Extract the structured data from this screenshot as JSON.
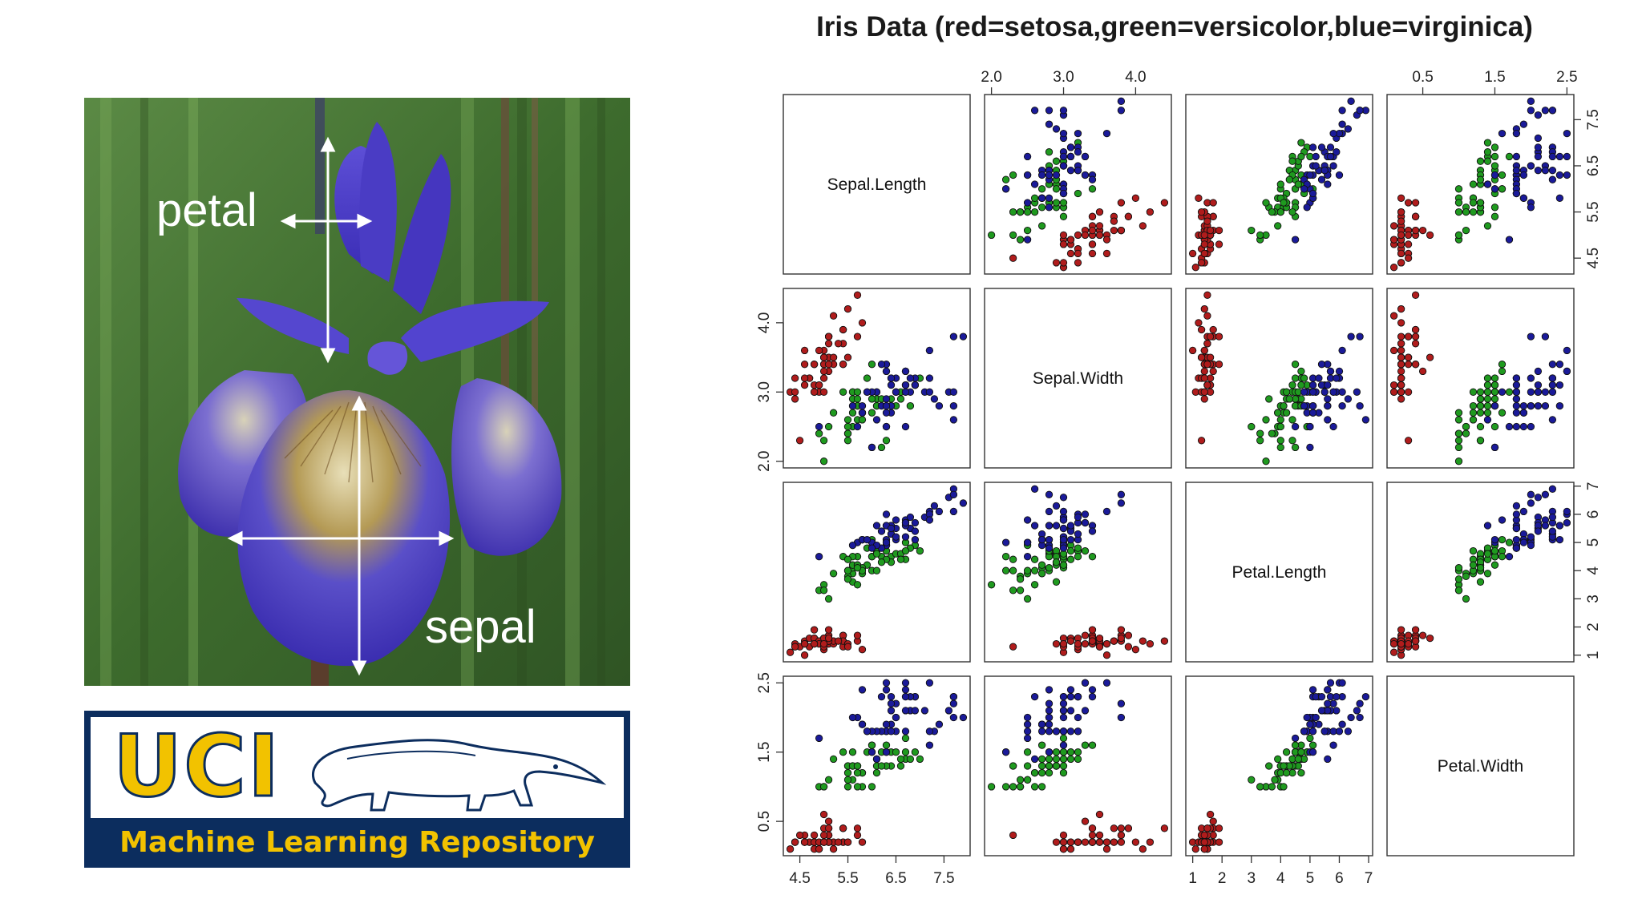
{
  "photo": {
    "petal_label": "petal",
    "sepal_label": "sepal",
    "colors": {
      "petal": "#4f3fc6",
      "sepal": "#3d2fb0",
      "background": "#3f6a2f"
    }
  },
  "logo": {
    "uci_text": "UCI",
    "subtitle": "Machine Learning Repository",
    "colors": {
      "navy": "#0c2d5e",
      "gold": "#f2c200"
    }
  },
  "chart_data": {
    "type": "scatter",
    "title": "Iris Data (red=setosa,green=versicolor,blue=virginica)",
    "variables": [
      "Sepal.Length",
      "Sepal.Width",
      "Petal.Length",
      "Petal.Width"
    ],
    "ranges": [
      [
        4.3,
        7.9
      ],
      [
        2.0,
        4.4
      ],
      [
        1.0,
        6.9
      ],
      [
        0.1,
        2.5
      ]
    ],
    "ticks": [
      [
        4.5,
        5.5,
        6.5,
        7.5
      ],
      [
        2.0,
        3.0,
        4.0
      ],
      [
        1,
        2,
        3,
        4,
        5,
        6,
        7
      ],
      [
        0.5,
        1.5,
        2.5
      ]
    ],
    "tick_labels": {
      "top": [
        [
          "2.0",
          "3.0",
          "4.0"
        ],
        [
          "0.5",
          "1.5",
          "2.5"
        ]
      ],
      "right": [
        [
          "4.5",
          "5.5",
          "6.5",
          "7.5"
        ],
        [
          "1",
          "2",
          "3",
          "4",
          "5",
          "6",
          "7"
        ]
      ],
      "left": [
        [
          "2.0",
          "3.0",
          "4.0"
        ],
        [
          "0.5",
          "1.5",
          "2.5"
        ]
      ],
      "bottom": [
        [
          "4.5",
          "5.5",
          "6.5",
          "7.5"
        ],
        [
          "1",
          "2",
          "3",
          "4",
          "5",
          "6",
          "7"
        ]
      ]
    },
    "legend": "in title",
    "grid": false,
    "series": [
      {
        "name": "setosa",
        "color": "#b01c1c",
        "points": [
          [
            5.1,
            3.5,
            1.4,
            0.2
          ],
          [
            4.9,
            3.0,
            1.4,
            0.2
          ],
          [
            4.7,
            3.2,
            1.3,
            0.2
          ],
          [
            4.6,
            3.1,
            1.5,
            0.2
          ],
          [
            5.0,
            3.6,
            1.4,
            0.2
          ],
          [
            5.4,
            3.9,
            1.7,
            0.4
          ],
          [
            4.6,
            3.4,
            1.4,
            0.3
          ],
          [
            5.0,
            3.4,
            1.5,
            0.2
          ],
          [
            4.4,
            2.9,
            1.4,
            0.2
          ],
          [
            4.9,
            3.1,
            1.5,
            0.1
          ],
          [
            5.4,
            3.7,
            1.5,
            0.2
          ],
          [
            4.8,
            3.4,
            1.6,
            0.2
          ],
          [
            4.8,
            3.0,
            1.4,
            0.1
          ],
          [
            4.3,
            3.0,
            1.1,
            0.1
          ],
          [
            5.8,
            4.0,
            1.2,
            0.2
          ],
          [
            5.7,
            4.4,
            1.5,
            0.4
          ],
          [
            5.4,
            3.9,
            1.3,
            0.4
          ],
          [
            5.1,
            3.5,
            1.4,
            0.3
          ],
          [
            5.7,
            3.8,
            1.7,
            0.3
          ],
          [
            5.1,
            3.8,
            1.5,
            0.3
          ],
          [
            5.4,
            3.4,
            1.7,
            0.2
          ],
          [
            5.1,
            3.7,
            1.5,
            0.4
          ],
          [
            4.6,
            3.6,
            1.0,
            0.2
          ],
          [
            5.1,
            3.3,
            1.7,
            0.5
          ],
          [
            4.8,
            3.4,
            1.9,
            0.2
          ],
          [
            5.0,
            3.0,
            1.6,
            0.2
          ],
          [
            5.0,
            3.4,
            1.6,
            0.4
          ],
          [
            5.2,
            3.5,
            1.5,
            0.2
          ],
          [
            5.2,
            3.4,
            1.4,
            0.2
          ],
          [
            4.7,
            3.2,
            1.6,
            0.2
          ],
          [
            4.8,
            3.1,
            1.6,
            0.2
          ],
          [
            5.4,
            3.4,
            1.5,
            0.4
          ],
          [
            5.2,
            4.1,
            1.5,
            0.1
          ],
          [
            5.5,
            4.2,
            1.4,
            0.2
          ],
          [
            4.9,
            3.1,
            1.5,
            0.2
          ],
          [
            5.0,
            3.2,
            1.2,
            0.2
          ],
          [
            5.5,
            3.5,
            1.3,
            0.2
          ],
          [
            4.9,
            3.6,
            1.4,
            0.1
          ],
          [
            4.4,
            3.0,
            1.3,
            0.2
          ],
          [
            5.1,
            3.4,
            1.5,
            0.2
          ],
          [
            5.0,
            3.5,
            1.3,
            0.3
          ],
          [
            4.5,
            2.3,
            1.3,
            0.3
          ],
          [
            4.4,
            3.2,
            1.3,
            0.2
          ],
          [
            5.0,
            3.5,
            1.6,
            0.6
          ],
          [
            5.1,
            3.8,
            1.9,
            0.4
          ],
          [
            4.8,
            3.0,
            1.4,
            0.3
          ],
          [
            5.1,
            3.8,
            1.6,
            0.2
          ],
          [
            4.6,
            3.2,
            1.4,
            0.2
          ],
          [
            5.3,
            3.7,
            1.5,
            0.2
          ],
          [
            5.0,
            3.3,
            1.4,
            0.2
          ]
        ]
      },
      {
        "name": "versicolor",
        "color": "#1f9a1f",
        "points": [
          [
            7.0,
            3.2,
            4.7,
            1.4
          ],
          [
            6.4,
            3.2,
            4.5,
            1.5
          ],
          [
            6.9,
            3.1,
            4.9,
            1.5
          ],
          [
            5.5,
            2.3,
            4.0,
            1.3
          ],
          [
            6.5,
            2.8,
            4.6,
            1.5
          ],
          [
            5.7,
            2.8,
            4.5,
            1.3
          ],
          [
            6.3,
            3.3,
            4.7,
            1.6
          ],
          [
            4.9,
            2.4,
            3.3,
            1.0
          ],
          [
            6.6,
            2.9,
            4.6,
            1.3
          ],
          [
            5.2,
            2.7,
            3.9,
            1.4
          ],
          [
            5.0,
            2.0,
            3.5,
            1.0
          ],
          [
            5.9,
            3.0,
            4.2,
            1.5
          ],
          [
            6.0,
            2.2,
            4.0,
            1.0
          ],
          [
            6.1,
            2.9,
            4.7,
            1.4
          ],
          [
            5.6,
            2.9,
            3.6,
            1.3
          ],
          [
            6.7,
            3.1,
            4.4,
            1.4
          ],
          [
            5.6,
            3.0,
            4.5,
            1.5
          ],
          [
            5.8,
            2.7,
            4.1,
            1.0
          ],
          [
            6.2,
            2.2,
            4.5,
            1.5
          ],
          [
            5.6,
            2.5,
            3.9,
            1.1
          ],
          [
            5.9,
            3.2,
            4.8,
            1.8
          ],
          [
            6.1,
            2.8,
            4.0,
            1.3
          ],
          [
            6.3,
            2.5,
            4.9,
            1.5
          ],
          [
            6.1,
            2.8,
            4.7,
            1.2
          ],
          [
            6.4,
            2.9,
            4.3,
            1.3
          ],
          [
            6.6,
            3.0,
            4.4,
            1.4
          ],
          [
            6.8,
            2.8,
            4.8,
            1.4
          ],
          [
            6.7,
            3.0,
            5.0,
            1.7
          ],
          [
            6.0,
            2.9,
            4.5,
            1.5
          ],
          [
            5.7,
            2.6,
            3.5,
            1.0
          ],
          [
            5.5,
            2.4,
            3.8,
            1.1
          ],
          [
            5.5,
            2.4,
            3.7,
            1.0
          ],
          [
            5.8,
            2.7,
            3.9,
            1.2
          ],
          [
            6.0,
            2.7,
            5.1,
            1.6
          ],
          [
            5.4,
            3.0,
            4.5,
            1.5
          ],
          [
            6.0,
            3.4,
            4.5,
            1.6
          ],
          [
            6.7,
            3.1,
            4.7,
            1.5
          ],
          [
            6.3,
            2.3,
            4.4,
            1.3
          ],
          [
            5.6,
            3.0,
            4.1,
            1.3
          ],
          [
            5.5,
            2.5,
            4.0,
            1.3
          ],
          [
            5.5,
            2.6,
            4.4,
            1.2
          ],
          [
            6.1,
            3.0,
            4.6,
            1.4
          ],
          [
            5.8,
            2.6,
            4.0,
            1.2
          ],
          [
            5.0,
            2.3,
            3.3,
            1.0
          ],
          [
            5.6,
            2.7,
            4.2,
            1.3
          ],
          [
            5.7,
            3.0,
            4.2,
            1.2
          ],
          [
            5.7,
            2.9,
            4.2,
            1.3
          ],
          [
            6.2,
            2.9,
            4.3,
            1.3
          ],
          [
            5.1,
            2.5,
            3.0,
            1.1
          ],
          [
            5.7,
            2.8,
            4.1,
            1.3
          ]
        ]
      },
      {
        "name": "virginica",
        "color": "#1a1a99",
        "points": [
          [
            6.3,
            3.3,
            6.0,
            2.5
          ],
          [
            5.8,
            2.7,
            5.1,
            1.9
          ],
          [
            7.1,
            3.0,
            5.9,
            2.1
          ],
          [
            6.3,
            2.9,
            5.6,
            1.8
          ],
          [
            6.5,
            3.0,
            5.8,
            2.2
          ],
          [
            7.6,
            3.0,
            6.6,
            2.1
          ],
          [
            4.9,
            2.5,
            4.5,
            1.7
          ],
          [
            7.3,
            2.9,
            6.3,
            1.8
          ],
          [
            6.7,
            2.5,
            5.8,
            1.8
          ],
          [
            7.2,
            3.6,
            6.1,
            2.5
          ],
          [
            6.5,
            3.2,
            5.1,
            2.0
          ],
          [
            6.4,
            2.7,
            5.3,
            1.9
          ],
          [
            6.8,
            3.0,
            5.5,
            2.1
          ],
          [
            5.7,
            2.5,
            5.0,
            2.0
          ],
          [
            5.8,
            2.8,
            5.1,
            2.4
          ],
          [
            6.4,
            3.2,
            5.3,
            2.3
          ],
          [
            6.5,
            3.0,
            5.5,
            1.8
          ],
          [
            7.7,
            3.8,
            6.7,
            2.2
          ],
          [
            7.7,
            2.6,
            6.9,
            2.3
          ],
          [
            6.0,
            2.2,
            5.0,
            1.5
          ],
          [
            6.9,
            3.2,
            5.7,
            2.3
          ],
          [
            5.6,
            2.8,
            4.9,
            2.0
          ],
          [
            7.7,
            2.8,
            6.7,
            2.0
          ],
          [
            6.3,
            2.7,
            4.9,
            1.8
          ],
          [
            6.7,
            3.3,
            5.7,
            2.1
          ],
          [
            7.2,
            3.2,
            6.0,
            1.8
          ],
          [
            6.2,
            2.8,
            4.8,
            1.8
          ],
          [
            6.1,
            3.0,
            4.9,
            1.8
          ],
          [
            6.4,
            2.8,
            5.6,
            2.1
          ],
          [
            7.2,
            3.0,
            5.8,
            1.6
          ],
          [
            7.4,
            2.8,
            6.1,
            1.9
          ],
          [
            7.9,
            3.8,
            6.4,
            2.0
          ],
          [
            6.4,
            2.8,
            5.6,
            2.2
          ],
          [
            6.3,
            2.8,
            5.1,
            1.5
          ],
          [
            6.1,
            2.6,
            5.6,
            1.4
          ],
          [
            7.7,
            3.0,
            6.1,
            2.3
          ],
          [
            6.3,
            3.4,
            5.6,
            2.4
          ],
          [
            6.4,
            3.1,
            5.5,
            1.8
          ],
          [
            6.0,
            3.0,
            4.8,
            1.8
          ],
          [
            6.9,
            3.1,
            5.4,
            2.1
          ],
          [
            6.7,
            3.1,
            5.6,
            2.4
          ],
          [
            6.9,
            3.1,
            5.1,
            2.3
          ],
          [
            5.8,
            2.7,
            5.1,
            1.9
          ],
          [
            6.8,
            3.2,
            5.9,
            2.3
          ],
          [
            6.7,
            3.3,
            5.7,
            2.5
          ],
          [
            6.7,
            3.0,
            5.2,
            2.3
          ],
          [
            6.3,
            2.5,
            5.0,
            1.9
          ],
          [
            6.5,
            3.0,
            5.2,
            2.0
          ],
          [
            6.2,
            3.4,
            5.4,
            2.3
          ],
          [
            5.9,
            3.0,
            5.1,
            1.8
          ]
        ]
      }
    ]
  }
}
